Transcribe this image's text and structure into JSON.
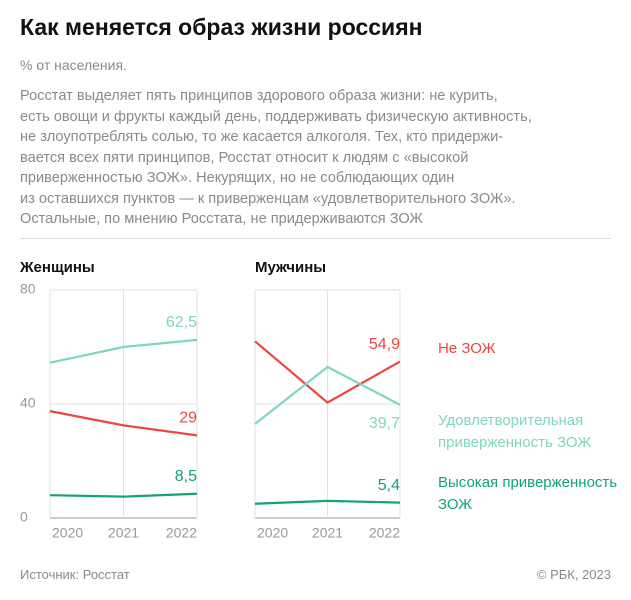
{
  "title": "Как меняется образ жизни россиян",
  "subtitle": "% от населения.",
  "description": [
    "Росстат выделяет пять принципов здорового образа жизни: не курить,",
    "есть овощи и фрукты каждый день, поддерживать физическую активность,",
    "не злоупотреблять солью, то же касается алкоголя. Тех, кто придержи-",
    "вается всех пяти принципов, Росстат относит к людям с «высокой",
    "приверженностью ЗОЖ». Некурящих, но не соблюдающих один",
    "из оставшихся пунктов — к приверженцам «удовлетворительного ЗОЖ».",
    "Остальные, по мнению Росстата, не придерживаются ЗОЖ"
  ],
  "source": "Источник: Росстат",
  "copyright": "© РБК, 2023",
  "chart_data": [
    {
      "type": "line",
      "title": "Женщины",
      "x": [
        2020,
        2021,
        2022
      ],
      "xlim": [
        2020,
        2022
      ],
      "ylim": [
        0,
        80
      ],
      "yticks": [
        0,
        40,
        80
      ],
      "show_ytick_labels": true,
      "grid": true,
      "series": [
        {
          "color": "#7fd8b8",
          "values": [
            54.5,
            60,
            62.5
          ],
          "value_labels": [
            null,
            null,
            "62,5"
          ]
        },
        {
          "color": "#ee4540",
          "values": [
            37.5,
            32.5,
            29
          ],
          "value_labels": [
            null,
            null,
            "29"
          ]
        },
        {
          "color": "#15a36e",
          "values": [
            8,
            7.5,
            8.5
          ],
          "value_labels": [
            null,
            null,
            "8,5"
          ]
        }
      ]
    },
    {
      "type": "line",
      "title": "Мужчины",
      "x": [
        2020,
        2021,
        2022
      ],
      "xlim": [
        2020,
        2022
      ],
      "ylim": [
        0,
        80
      ],
      "yticks": [
        0,
        40,
        80
      ],
      "show_ytick_labels": false,
      "grid": true,
      "series": [
        {
          "name": "Не ЗОЖ",
          "color": "#ee4540",
          "values": [
            62,
            40.5,
            54.9
          ],
          "value_labels": [
            null,
            null,
            "54,9"
          ]
        },
        {
          "name": "Удовлетворительная приверженность ЗОЖ",
          "color": "#7fd8b8",
          "values": [
            33,
            53,
            39.7
          ],
          "value_labels": [
            null,
            null,
            "39,7"
          ]
        },
        {
          "name": "Высокая приверженность ЗОЖ",
          "color": "#15a36e",
          "values": [
            5,
            6,
            5.4
          ],
          "value_labels": [
            null,
            null,
            "5,4"
          ]
        }
      ]
    }
  ]
}
